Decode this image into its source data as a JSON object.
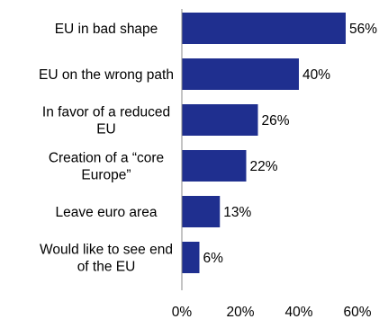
{
  "chart_data": {
    "type": "bar",
    "orientation": "horizontal",
    "categories": [
      [
        "EU in bad shape"
      ],
      [
        "EU on the wrong path"
      ],
      [
        "In favor of a reduced",
        "EU"
      ],
      [
        "Creation of a “core",
        "Europe”"
      ],
      [
        "Leave euro area"
      ],
      [
        "Would like to see end",
        "of the EU"
      ]
    ],
    "values": [
      56,
      40,
      26,
      22,
      13,
      6
    ],
    "value_labels": [
      "56%",
      "40%",
      "26%",
      "22%",
      "13%",
      "6%"
    ],
    "x_ticks": [
      0,
      20,
      40,
      60
    ],
    "x_tick_labels": [
      "0%",
      "20%",
      "40%",
      "60%"
    ],
    "xlim": [
      0,
      60
    ],
    "title": "",
    "xlabel": "",
    "ylabel": "",
    "grid": false,
    "legend": "none",
    "bar_color": "#1f2f8f",
    "axis_color": "#8a8a8a"
  }
}
